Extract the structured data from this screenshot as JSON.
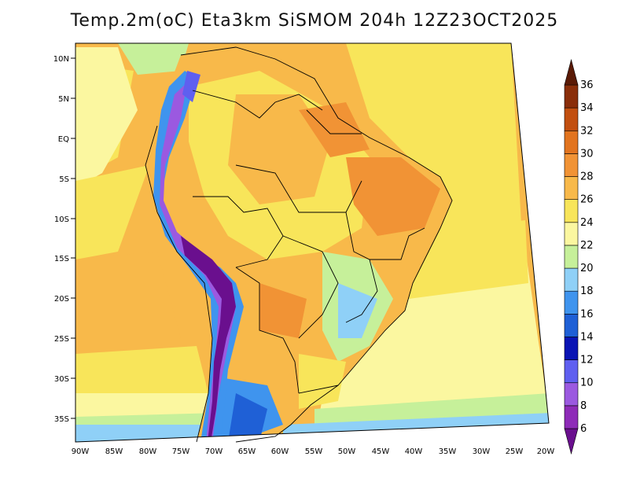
{
  "title": "Temp.2m(oC) Eta3km SiSMOM 204h 12Z23OCT2025",
  "lat_labels": [
    "10N",
    "5N",
    "EQ",
    "5S",
    "10S",
    "15S",
    "20S",
    "25S",
    "30S",
    "35S"
  ],
  "lon_labels": [
    "90W",
    "85W",
    "80W",
    "75W",
    "70W",
    "65W",
    "60W",
    "55W",
    "50W",
    "45W",
    "40W",
    "35W",
    "30W",
    "25W",
    "20W"
  ],
  "colorbar": {
    "labels": [
      "6",
      "8",
      "10",
      "12",
      "14",
      "16",
      "18",
      "20",
      "22",
      "24",
      "26",
      "28",
      "30",
      "32",
      "34",
      "36"
    ],
    "colors": [
      "#6a0f8e",
      "#8e2bb8",
      "#9b59e0",
      "#5f5ff0",
      "#0a14b4",
      "#1f60d6",
      "#3f94ee",
      "#8fd0f7",
      "#c6f09a",
      "#fbf7a0",
      "#f8e55a",
      "#f8b94a",
      "#f19335",
      "#e2741f",
      "#c24f10",
      "#8a2e0a",
      "#5a1a06"
    ]
  },
  "map": {
    "region": "South America",
    "variable": "2 m temperature",
    "units": "oC"
  }
}
